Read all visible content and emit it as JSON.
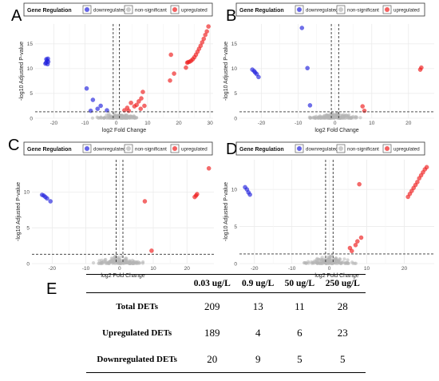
{
  "chart_data": [
    {
      "panel": "A",
      "type": "scatter",
      "legend": {
        "title": "Gene Regulation",
        "items": [
          "downregulated",
          "non-significant",
          "upregulated"
        ]
      },
      "xlabel": "log2 Fold Change",
      "ylabel": "-log10 Adjusted P-value",
      "xlim": [
        -26,
        31
      ],
      "ylim": [
        0,
        19
      ],
      "xticks": [
        -20,
        -10,
        0,
        10,
        20,
        30
      ],
      "yticks": [
        0,
        5,
        10,
        15
      ],
      "vlines": [
        -1,
        1
      ],
      "hline": 1.3,
      "series": [
        {
          "name": "downregulated",
          "points": [
            [
              -22.5,
              11.2
            ],
            [
              -22.2,
              11.6
            ],
            [
              -21.9,
              12.0
            ],
            [
              -22.7,
              11.0
            ],
            [
              -22.0,
              10.9
            ],
            [
              -21.8,
              11.4
            ],
            [
              -22.4,
              11.9
            ],
            [
              -9.5,
              6.0
            ],
            [
              -7.5,
              3.7
            ],
            [
              -5.0,
              2.5
            ],
            [
              -6.0,
              1.9
            ],
            [
              -3.0,
              1.6
            ],
            [
              -8.2,
              1.5
            ]
          ]
        },
        {
          "name": "non-significant",
          "cloud": true
        },
        {
          "name": "upregulated",
          "points": [
            [
              29.5,
              18.5
            ],
            [
              29.0,
              17.5
            ],
            [
              28.5,
              16.8
            ],
            [
              28.0,
              16.0
            ],
            [
              27.5,
              15.3
            ],
            [
              27.0,
              14.6
            ],
            [
              26.5,
              14.0
            ],
            [
              26.0,
              13.4
            ],
            [
              25.5,
              12.8
            ],
            [
              25.0,
              12.3
            ],
            [
              24.5,
              11.9
            ],
            [
              24.0,
              11.6
            ],
            [
              23.5,
              11.4
            ],
            [
              23.0,
              11.3
            ],
            [
              22.7,
              11.2
            ],
            [
              22.3,
              10.2
            ],
            [
              17.5,
              12.8
            ],
            [
              18.5,
              9.0
            ],
            [
              17.2,
              7.6
            ],
            [
              8.5,
              5.3
            ],
            [
              7.2,
              3.4
            ],
            [
              8.0,
              4.0
            ],
            [
              5.8,
              2.4
            ],
            [
              4.7,
              3.1
            ],
            [
              3.5,
              2.1
            ],
            [
              2.6,
              1.6
            ],
            [
              6.5,
              2.7
            ],
            [
              9.0,
              2.5
            ],
            [
              4.0,
              1.5
            ],
            [
              7.8,
              1.9
            ]
          ]
        }
      ]
    },
    {
      "panel": "B",
      "type": "scatter",
      "legend": {
        "title": "Gene Regulation",
        "items": [
          "downregulated",
          "non-significant",
          "upregulated"
        ]
      },
      "xlabel": "log2 Fold Change",
      "ylabel": "-log10 Adjusted P-value",
      "xlim": [
        -26,
        27
      ],
      "ylim": [
        0,
        19
      ],
      "xticks": [
        -20,
        -10,
        0,
        10,
        20
      ],
      "yticks": [
        0,
        5,
        10,
        15
      ],
      "vlines": [
        -1,
        1
      ],
      "hline": 1.3,
      "series": [
        {
          "name": "downregulated",
          "points": [
            [
              -22.5,
              9.8
            ],
            [
              -22.0,
              9.5
            ],
            [
              -21.7,
              9.2
            ],
            [
              -21.3,
              8.9
            ],
            [
              -20.8,
              8.3
            ],
            [
              -9.0,
              18.2
            ],
            [
              -7.5,
              10.1
            ],
            [
              -6.8,
              2.6
            ]
          ]
        },
        {
          "name": "non-significant",
          "cloud": true
        },
        {
          "name": "upregulated",
          "points": [
            [
              23.5,
              10.2
            ],
            [
              23.2,
              9.8
            ],
            [
              7.5,
              2.4
            ],
            [
              8.0,
              1.5
            ]
          ]
        }
      ]
    },
    {
      "panel": "C",
      "type": "scatter",
      "legend": {
        "title": "Gene Regulation",
        "items": [
          "downregulated",
          "non-significant",
          "upregulated"
        ]
      },
      "xlabel": "log2 Fold Change",
      "ylabel": "-log10 Adjusted P-value",
      "xlim": [
        -26,
        28
      ],
      "ylim": [
        0,
        14.5
      ],
      "xticks": [
        -20,
        -10,
        0,
        10,
        20
      ],
      "yticks": [
        0,
        5,
        10
      ],
      "vlines": [
        -1,
        1
      ],
      "hline": 1.3,
      "series": [
        {
          "name": "downregulated",
          "points": [
            [
              -23.0,
              9.6
            ],
            [
              -22.5,
              9.5
            ],
            [
              -22.0,
              9.3
            ],
            [
              -21.5,
              9.1
            ],
            [
              -20.5,
              8.7
            ]
          ]
        },
        {
          "name": "non-significant",
          "cloud": true
        },
        {
          "name": "upregulated",
          "points": [
            [
              26.5,
              13.3
            ],
            [
              23.0,
              9.7
            ],
            [
              22.7,
              9.5
            ],
            [
              22.3,
              9.3
            ],
            [
              7.5,
              8.7
            ],
            [
              9.5,
              1.8
            ]
          ]
        }
      ]
    },
    {
      "panel": "D",
      "type": "scatter",
      "legend": {
        "title": "Gene Regulation",
        "items": [
          "downregulated",
          "non-significant",
          "upregulated"
        ]
      },
      "xlabel": "log2 Fold Change",
      "ylabel": "-log10 Adjusted P-value",
      "xlim": [
        -24,
        28
      ],
      "ylim": [
        0,
        14
      ],
      "xticks": [
        -20,
        -10,
        0,
        10,
        20
      ],
      "yticks": [
        0,
        5,
        10
      ],
      "vlines": [
        -1,
        1
      ],
      "hline": 1.3,
      "series": [
        {
          "name": "downregulated",
          "points": [
            [
              -22.5,
              10.3
            ],
            [
              -22.0,
              10.0
            ],
            [
              -21.6,
              9.6
            ],
            [
              -21.2,
              9.3
            ]
          ]
        },
        {
          "name": "non-significant",
          "cloud": true
        },
        {
          "name": "upregulated",
          "points": [
            [
              26.0,
              13.0
            ],
            [
              25.5,
              12.7
            ],
            [
              25.0,
              12.3
            ],
            [
              24.5,
              11.9
            ],
            [
              24.0,
              11.5
            ],
            [
              23.5,
              11.0
            ],
            [
              23.0,
              10.6
            ],
            [
              22.5,
              10.2
            ],
            [
              22.0,
              9.8
            ],
            [
              21.5,
              9.4
            ],
            [
              21.0,
              9.0
            ],
            [
              8.0,
              10.7
            ],
            [
              7.5,
              3.0
            ],
            [
              7.0,
              2.5
            ],
            [
              6.0,
              1.7
            ],
            [
              5.5,
              2.1
            ],
            [
              8.5,
              3.5
            ]
          ]
        }
      ]
    },
    {
      "panel": "E",
      "type": "table",
      "columns": [
        "",
        "0.03 ug/L",
        "0.9 ug/L",
        "50 ug/L",
        "250 ug/L"
      ],
      "rows": [
        {
          "label": "Total DETs",
          "values": [
            "209",
            "13",
            "11",
            "28"
          ]
        },
        {
          "label": "Upregulated DETs",
          "values": [
            "189",
            "4",
            "6",
            "23"
          ]
        },
        {
          "label": "Downregulated DETs",
          "values": [
            "20",
            "9",
            "5",
            "5"
          ]
        }
      ]
    }
  ],
  "colors": {
    "downregulated": "#2222dd",
    "non_significant": "#b5b5b5",
    "upregulated": "#ee1c1c"
  }
}
